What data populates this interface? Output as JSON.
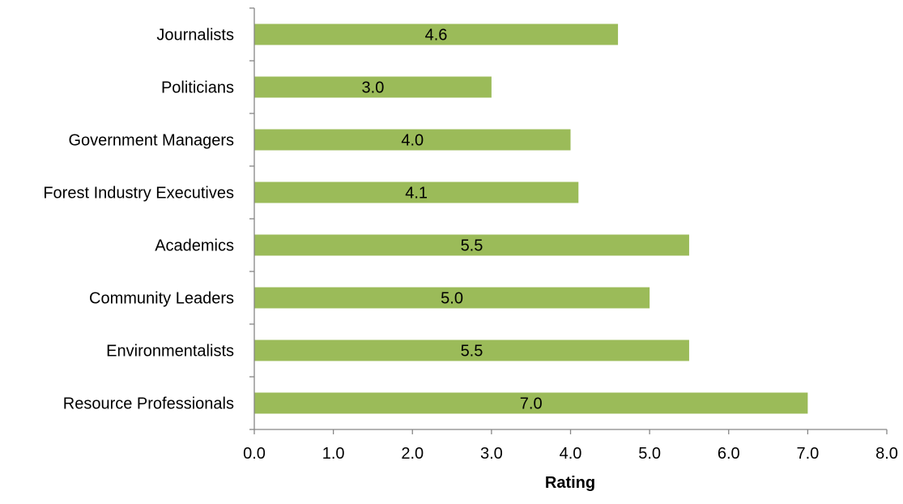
{
  "chart_data": {
    "type": "bar",
    "orientation": "horizontal",
    "title": "",
    "xlabel": "Rating",
    "ylabel": "",
    "categories": [
      "Journalists",
      "Politicians",
      "Government Managers",
      "Forest Industry Executives",
      "Academics",
      "Community Leaders",
      "Environmentalists",
      "Resource Professionals"
    ],
    "values": [
      4.6,
      3.0,
      4.0,
      4.1,
      5.5,
      5.0,
      5.5,
      7.0
    ],
    "value_labels": [
      "4.6",
      "3.0",
      "4.0",
      "4.1",
      "5.5",
      "5.0",
      "5.5",
      "7.0"
    ],
    "xlim": [
      0,
      8
    ],
    "xticks": [
      0,
      1,
      2,
      3,
      4,
      5,
      6,
      7,
      8
    ],
    "xtick_labels": [
      "0.0",
      "1.0",
      "2.0",
      "3.0",
      "4.0",
      "5.0",
      "6.0",
      "7.0",
      "8.0"
    ],
    "bar_color": "#9BBB59",
    "axis_color": "#868686",
    "grid": false,
    "legend": "none"
  }
}
